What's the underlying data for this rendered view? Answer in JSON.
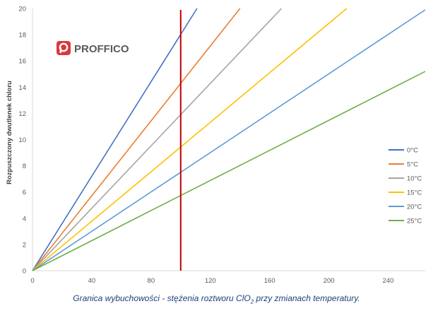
{
  "chart_data": {
    "type": "line",
    "title": "",
    "xlabel": "",
    "ylabel": "Rozpuszczony dwutlenek chloru",
    "xlim": [
      0,
      265
    ],
    "ylim": [
      0,
      20
    ],
    "x_ticks": [
      0,
      40,
      80,
      120,
      160,
      200,
      240
    ],
    "y_ticks": [
      0,
      2,
      4,
      6,
      8,
      10,
      12,
      14,
      16,
      18,
      20
    ],
    "grid": false,
    "legend_position": "right",
    "series": [
      {
        "name": "0°C",
        "color": "#4472c4",
        "x": [
          0,
          111
        ],
        "y": [
          0,
          20
        ]
      },
      {
        "name": "5°C",
        "color": "#ed7d31",
        "x": [
          0,
          140
        ],
        "y": [
          0,
          20
        ]
      },
      {
        "name": "10°C",
        "color": "#a5a5a5",
        "x": [
          0,
          168
        ],
        "y": [
          0,
          20
        ]
      },
      {
        "name": "15°C",
        "color": "#ffc000",
        "x": [
          0,
          212
        ],
        "y": [
          0,
          20
        ]
      },
      {
        "name": "20°C",
        "color": "#5b9bd5",
        "x": [
          0,
          265
        ],
        "y": [
          0,
          19.9
        ]
      },
      {
        "name": "25°C",
        "color": "#70ad47",
        "x": [
          0,
          265
        ],
        "y": [
          0,
          15.2
        ]
      }
    ],
    "reference_line": {
      "x": 100,
      "color": "#c00000"
    }
  },
  "logo": {
    "text": "PROFFICO",
    "color": "#d9393a"
  },
  "caption": {
    "before": "Granica wybuchowości - stężenia roztworu ClO",
    "subscript": "2",
    "after": " przy zmianach temperatury."
  }
}
